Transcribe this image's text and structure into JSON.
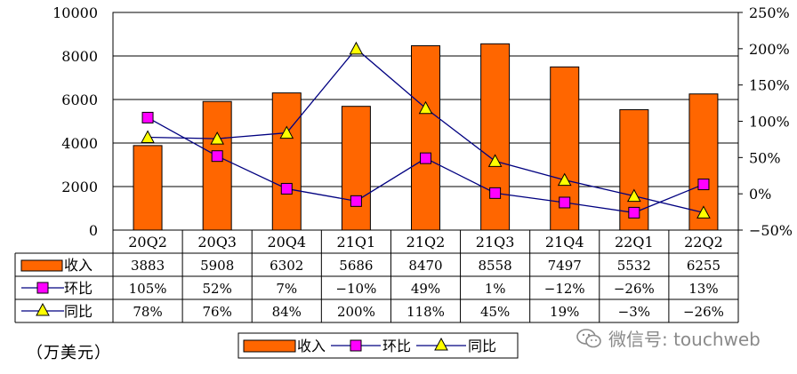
{
  "chart_data": {
    "type": "bar",
    "categories": [
      "20Q2",
      "20Q3",
      "20Q4",
      "21Q1",
      "21Q2",
      "21Q3",
      "21Q4",
      "22Q1",
      "22Q2"
    ],
    "series": [
      {
        "name": "收入",
        "kind": "bar",
        "axis": "left",
        "values": [
          3883,
          5908,
          6302,
          5686,
          8470,
          8558,
          7497,
          5532,
          6255
        ],
        "labels": [
          "3883",
          "5908",
          "6302",
          "5686",
          "8470",
          "8558",
          "7497",
          "5532",
          "6255"
        ]
      },
      {
        "name": "环比",
        "kind": "line",
        "marker": "square",
        "axis": "right",
        "values": [
          105,
          52,
          7,
          -10,
          49,
          1,
          -12,
          -26,
          13
        ],
        "labels": [
          "105%",
          "52%",
          "7%",
          "−10%",
          "49%",
          "1%",
          "−12%",
          "−26%",
          "13%"
        ]
      },
      {
        "name": "同比",
        "kind": "line",
        "marker": "triangle",
        "axis": "right",
        "values": [
          78,
          76,
          84,
          200,
          118,
          45,
          19,
          -3,
          -26
        ],
        "labels": [
          "78%",
          "76%",
          "84%",
          "200%",
          "118%",
          "45%",
          "19%",
          "−3%",
          "−26%"
        ]
      }
    ],
    "ylim_left": [
      0,
      10000
    ],
    "yticks_left": [
      "0",
      "2000",
      "4000",
      "6000",
      "8000",
      "10000"
    ],
    "ylim_right": [
      -50,
      250
    ],
    "yticks_right": [
      "−50%",
      "0%",
      "50%",
      "100%",
      "150%",
      "200%",
      "250%"
    ],
    "unit_label": "（万美元）",
    "legend": [
      "收入",
      "环比",
      "同比"
    ],
    "colors": {
      "bar": "#ff6600",
      "mom_line": "#000080",
      "mom_marker": "#ff00ff",
      "yoy_line": "#000080",
      "yoy_marker": "#ffff00"
    }
  },
  "watermark": "微信号: touchweb"
}
